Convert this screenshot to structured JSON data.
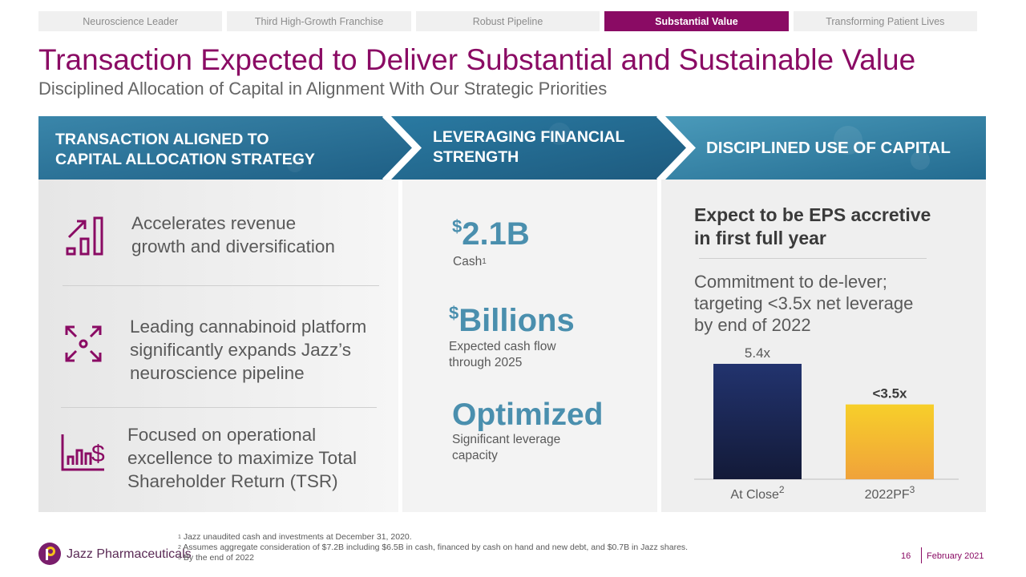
{
  "tabs": [
    {
      "label": "Neuroscience Leader",
      "active": false
    },
    {
      "label": "Third High-Growth Franchise",
      "active": false
    },
    {
      "label": "Robust Pipeline",
      "active": false
    },
    {
      "label": "Substantial Value",
      "active": true
    },
    {
      "label": "Transforming Patient Lives",
      "active": false
    }
  ],
  "title": "Transaction Expected to Deliver Substantial and Sustainable Value",
  "subtitle": "Disciplined Allocation of Capital in Alignment With Our Strategic Priorities",
  "banner": {
    "col1_line1": "TRANSACTION ALIGNED TO",
    "col1_line2": "CAPITAL ALLOCATION STRATEGY",
    "col2_line1": "LEVERAGING FINANCIAL",
    "col2_line2": "STRENGTH",
    "col3": "DISCIPLINED USE OF CAPITAL"
  },
  "features": [
    {
      "icon": "growth-chart-icon",
      "line1": "Accelerates revenue",
      "line2": "growth and diversification"
    },
    {
      "icon": "expand-arrows-icon",
      "line1": "Leading cannabinoid platform",
      "line2": "significantly expands Jazz’s",
      "line3": "neuroscience pipeline"
    },
    {
      "icon": "bar-dollar-icon",
      "line1": "Focused on operational",
      "line2": "excellence to maximize Total",
      "line3": "Shareholder Return (TSR)"
    }
  ],
  "financial": {
    "cash_symbol": "$",
    "cash_value": "2.1B",
    "cash_label": "Cash",
    "cash_sup": "1",
    "cashflow_symbol": "$",
    "cashflow_value": "Billions",
    "cashflow_line1": "Expected cash flow",
    "cashflow_line2": "through 2025",
    "leverage_value": "Optimized",
    "leverage_line1": "Significant leverage",
    "leverage_line2": "capacity"
  },
  "discipline": {
    "eps_line1": "Expect to be EPS accretive",
    "eps_line2": "in first full year",
    "commit_line1": "Commitment to de-lever;",
    "commit_line2": "targeting <3.5x net leverage",
    "commit_line3": "by end of 2022"
  },
  "chart_data": {
    "type": "bar",
    "categories": [
      "At Close",
      "2022PF"
    ],
    "category_sups": [
      "2",
      "3"
    ],
    "values": [
      5.4,
      3.5
    ],
    "data_labels": [
      "5.4x",
      "<3.5x"
    ],
    "ylim": [
      0,
      5.4
    ],
    "colors": [
      "#1d2a5c",
      "#f5b82e"
    ],
    "title": "",
    "xlabel": "",
    "ylabel": ""
  },
  "footer": {
    "logo_text": "Jazz Pharmaceuticals",
    "note1_sup": "1",
    "note1": "Jazz unaudited cash and investments at December 31, 2020.",
    "note2_sup": "2",
    "note2": "Assumes aggregate consideration of $7.2B including $6.5B in cash, financed by cash on hand and new debt, and $0.7B in Jazz shares.",
    "note3_sup": "3",
    "note3": "By the end of 2022",
    "page": "16",
    "date": "February 2021"
  },
  "colors": {
    "brand": "#8a0b64",
    "accent_blue": "#4a8fae",
    "banner_blue": "#2f7fa3"
  }
}
